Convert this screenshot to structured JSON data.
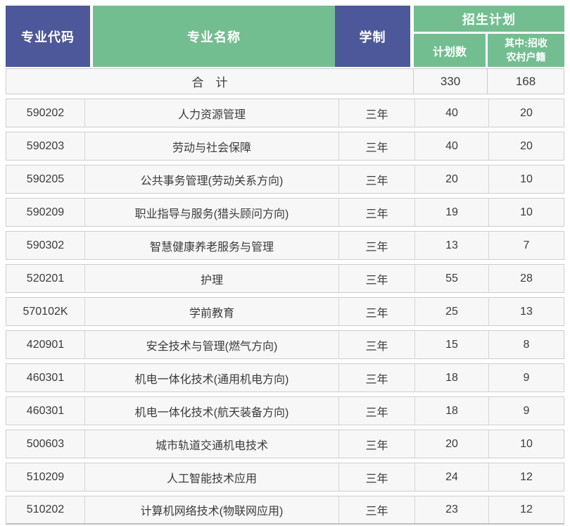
{
  "table": {
    "header": {
      "code": "专业代码",
      "name": "专业名称",
      "duration": "学制",
      "plan_group": "招生计划",
      "plan_num": "计划数",
      "rural_line1": "其中:招收",
      "rural_line2": "农村户籍"
    },
    "summary": {
      "label": "合　计",
      "plan": "330",
      "rural": "168"
    },
    "rows": [
      {
        "code": "590202",
        "name": "人力资源管理",
        "duration": "三年",
        "plan": "40",
        "rural": "20"
      },
      {
        "code": "590203",
        "name": "劳动与社会保障",
        "duration": "三年",
        "plan": "40",
        "rural": "20"
      },
      {
        "code": "590205",
        "name": "公共事务管理(劳动关系方向)",
        "duration": "三年",
        "plan": "20",
        "rural": "10"
      },
      {
        "code": "590209",
        "name": "职业指导与服务(猎头顾问方向)",
        "duration": "三年",
        "plan": "19",
        "rural": "10"
      },
      {
        "code": "590302",
        "name": "智慧健康养老服务与管理",
        "duration": "三年",
        "plan": "13",
        "rural": "7"
      },
      {
        "code": "520201",
        "name": "护理",
        "duration": "三年",
        "plan": "55",
        "rural": "28"
      },
      {
        "code": "570102K",
        "name": "学前教育",
        "duration": "三年",
        "plan": "25",
        "rural": "13"
      },
      {
        "code": "420901",
        "name": "安全技术与管理(燃气方向)",
        "duration": "三年",
        "plan": "15",
        "rural": "8"
      },
      {
        "code": "460301",
        "name": "机电一体化技术(通用机电方向)",
        "duration": "三年",
        "plan": "18",
        "rural": "9"
      },
      {
        "code": "460301",
        "name": "机电一体化技术(航天装备方向)",
        "duration": "三年",
        "plan": "18",
        "rural": "9"
      },
      {
        "code": "500603",
        "name": "城市轨道交通机电技术",
        "duration": "三年",
        "plan": "20",
        "rural": "10"
      },
      {
        "code": "510209",
        "name": "人工智能技术应用",
        "duration": "三年",
        "plan": "24",
        "rural": "12"
      },
      {
        "code": "510202",
        "name": "计算机网络技术(物联网应用)",
        "duration": "三年",
        "plan": "23",
        "rural": "12"
      }
    ]
  },
  "colors": {
    "header_blue": "#4C5899",
    "header_green": "#73BE91",
    "row_bg": "#F7F7F7"
  }
}
